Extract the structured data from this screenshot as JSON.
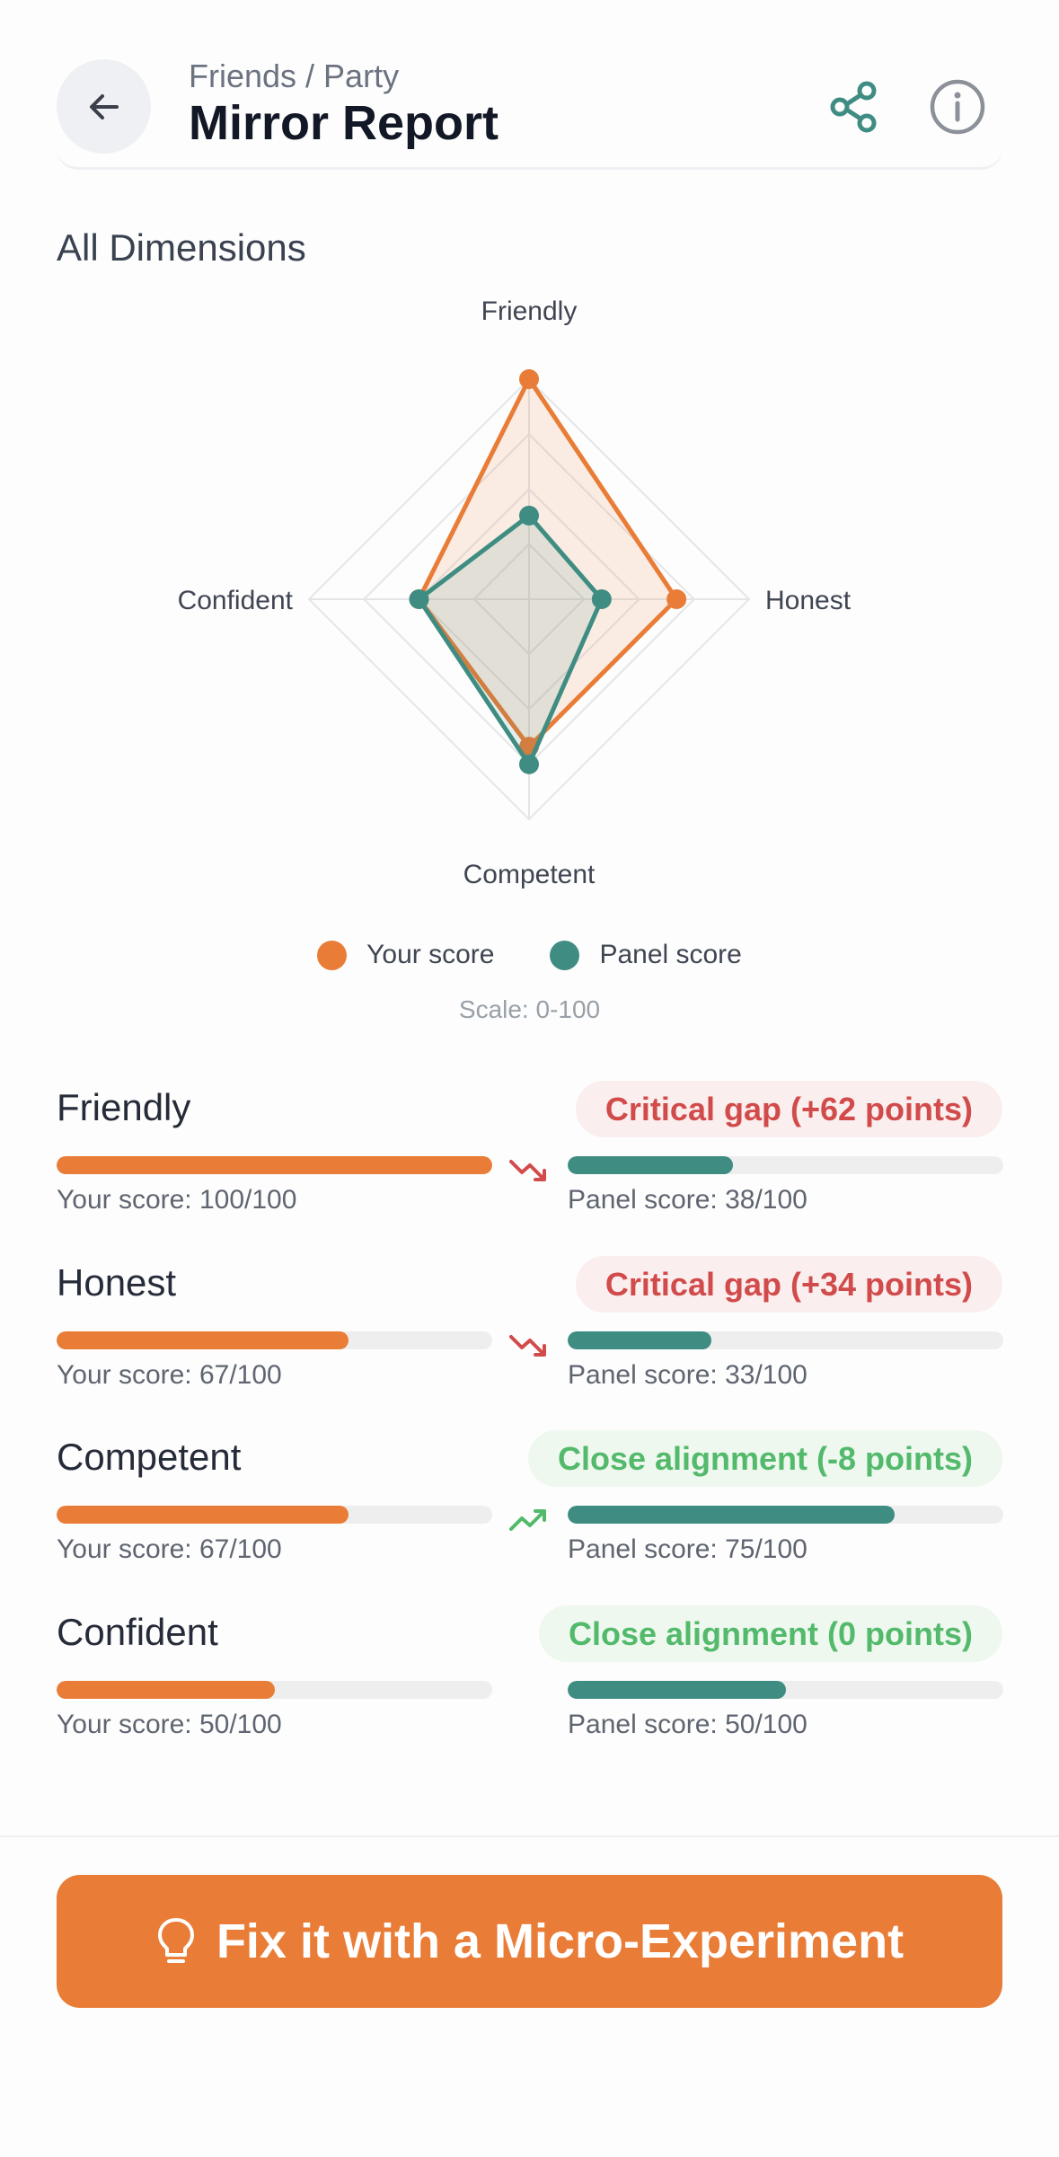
{
  "header": {
    "breadcrumb": "Friends / Party",
    "title": "Mirror Report",
    "back_icon": "arrow-left-icon",
    "share_icon": "share-icon",
    "info_icon": "info-icon"
  },
  "colors": {
    "your_score": "#e97c36",
    "panel_score": "#3f8d82",
    "critical": "#d24b4b",
    "aligned": "#53b96b"
  },
  "chart_section": {
    "title": "All Dimensions",
    "legend": {
      "your": "Your score",
      "panel": "Panel score"
    },
    "scale_note": "Scale: 0-100"
  },
  "chart_data": {
    "type": "radar",
    "axes": [
      "Friendly",
      "Honest",
      "Competent",
      "Confident"
    ],
    "range": [
      0,
      100
    ],
    "grid_levels": 4,
    "series": [
      {
        "name": "Your score",
        "values": [
          100,
          67,
          67,
          50
        ]
      },
      {
        "name": "Panel score",
        "values": [
          38,
          33,
          75,
          50
        ]
      }
    ]
  },
  "dimensions": [
    {
      "name": "Friendly",
      "badge": "Critical gap (+62 points)",
      "status": "critical",
      "trend": "down",
      "your": 100,
      "panel": 38,
      "your_text": "Your score: 100/100",
      "panel_text": "Panel score: 38/100"
    },
    {
      "name": "Honest",
      "badge": "Critical gap (+34 points)",
      "status": "critical",
      "trend": "down",
      "your": 67,
      "panel": 33,
      "your_text": "Your score: 67/100",
      "panel_text": "Panel score: 33/100"
    },
    {
      "name": "Competent",
      "badge": "Close alignment (-8 points)",
      "status": "aligned",
      "trend": "up",
      "your": 67,
      "panel": 75,
      "your_text": "Your score: 67/100",
      "panel_text": "Panel score: 75/100"
    },
    {
      "name": "Confident",
      "badge": "Close alignment (0 points)",
      "status": "aligned",
      "trend": "none",
      "your": 50,
      "panel": 50,
      "your_text": "Your score: 50/100",
      "panel_text": "Panel score: 50/100"
    }
  ],
  "cta": {
    "label": "Fix it with a Micro-Experiment",
    "icon": "lightbulb-icon"
  }
}
